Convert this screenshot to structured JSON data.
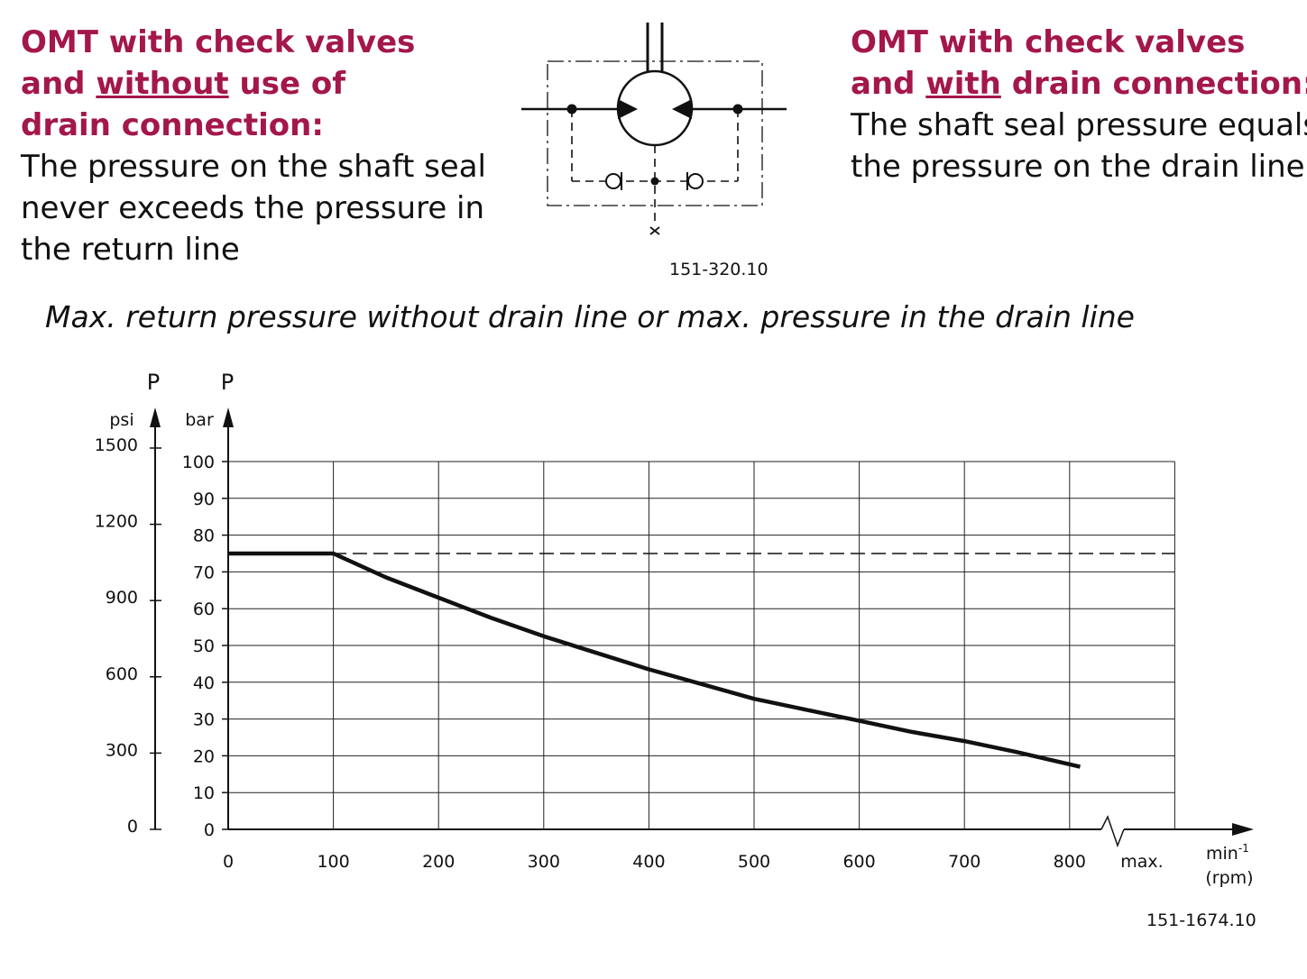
{
  "left_heading": {
    "line1": "OMT with check valves",
    "line2_pre": "and ",
    "line2_u": "without",
    "line2_post": " use of",
    "line3": "drain connection:"
  },
  "left_body": [
    "The pressure on the shaft seal",
    "never exceeds the pressure in",
    "the return line"
  ],
  "right_heading": {
    "line1": "OMT with check valves",
    "line2_pre": "and ",
    "line2_u": "with",
    "line2_post": " drain connection:"
  },
  "right_body": [
    "The shaft seal pressure equals",
    "the pressure on the drain line."
  ],
  "diagram_figure_id": "151-320.10",
  "chart_figure_id": "151-1674.10",
  "colors": {
    "heading": "#a3174a",
    "text": "#111111"
  },
  "chart_data": {
    "type": "line",
    "title": "Max. return pressure without drain line or max. pressure in the drain line",
    "xlabel_line1": "min",
    "xlabel_sup": "-1",
    "xlabel_line2": "(rpm)",
    "xmax_label": "max.",
    "x_ticks": [
      0,
      100,
      200,
      300,
      400,
      500,
      600,
      700,
      800
    ],
    "xlim": [
      0,
      900
    ],
    "y_bar": {
      "symbol": "P",
      "unit": "bar",
      "ticks": [
        0,
        10,
        20,
        30,
        40,
        50,
        60,
        70,
        80,
        90,
        100
      ],
      "ylim": [
        0,
        100
      ]
    },
    "y_psi": {
      "symbol": "P",
      "unit": "psi",
      "ticks": [
        0,
        300,
        600,
        900,
        1200,
        1500
      ]
    },
    "grid": true,
    "series": [
      {
        "style": "solid-thick",
        "x": [
          0,
          100,
          150,
          200,
          250,
          300,
          350,
          400,
          450,
          500,
          550,
          600,
          650,
          700,
          750,
          810
        ],
        "y": [
          75,
          75,
          68.5,
          63,
          57.5,
          52.5,
          48,
          43.5,
          39.5,
          35.5,
          32.5,
          29.5,
          26.5,
          24,
          21,
          17
        ]
      },
      {
        "style": "dashed",
        "x": [
          0,
          900
        ],
        "y": [
          75,
          75
        ]
      }
    ]
  }
}
